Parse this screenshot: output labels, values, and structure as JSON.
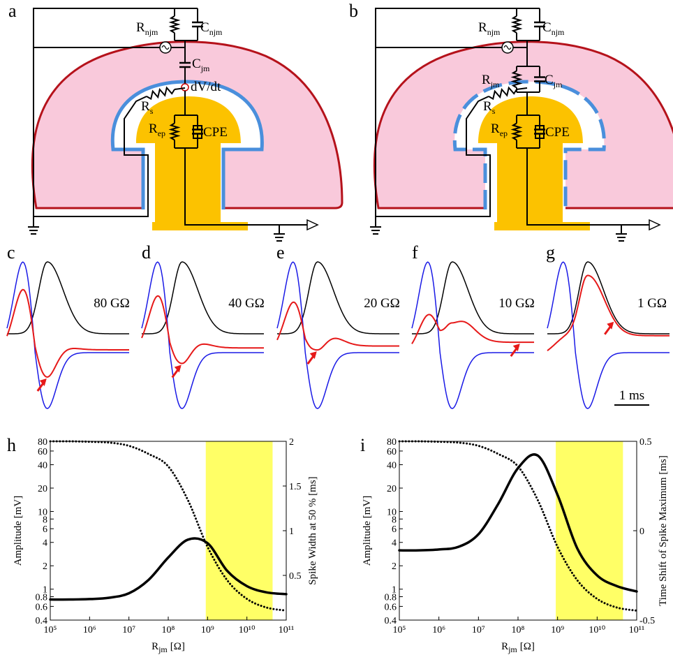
{
  "panel_labels": [
    "a",
    "b",
    "c",
    "d",
    "e",
    "f",
    "g",
    "h",
    "i"
  ],
  "circuit_a": {
    "labels": [
      {
        "main": "R",
        "sub": "njm"
      },
      {
        "main": "C",
        "sub": "njm"
      },
      {
        "main": "C",
        "sub": "jm"
      },
      {
        "main": "dV/dt"
      },
      {
        "main": "R",
        "sub": "s"
      },
      {
        "main": "R",
        "sub": "ep"
      },
      {
        "main": "CPE"
      }
    ]
  },
  "circuit_b": {
    "labels": [
      {
        "main": "R",
        "sub": "njm"
      },
      {
        "main": "C",
        "sub": "njm"
      },
      {
        "main": "R",
        "sub": "jm"
      },
      {
        "main": "C",
        "sub": "jm"
      },
      {
        "main": "R",
        "sub": "s"
      },
      {
        "main": "R",
        "sub": "ep"
      },
      {
        "main": "CPE"
      }
    ]
  },
  "spikes": {
    "resistances": [
      "80 GΩ",
      "40 GΩ",
      "20 GΩ",
      "10 GΩ",
      "1 GΩ"
    ],
    "scale_bar": "1 ms"
  },
  "chart_data": [
    {
      "type": "line",
      "xscale": "log",
      "yscale": "log",
      "xlabel": {
        "symbol": "R",
        "subscript": "jm",
        "unit": "[Ω]"
      },
      "ylabel": "Amplitude [mV]",
      "y2label": "Spike Width at 50 % [ms]",
      "x": [
        100000,
        316228,
        1000000,
        3162278,
        10000000,
        31622777,
        100000000,
        316227766,
        1000000000,
        3162277660,
        10000000000,
        31622776602,
        100000000000
      ],
      "series": [
        {
          "color": "#000000",
          "style": "dotted",
          "values": [
            80,
            80,
            79,
            77,
            70,
            55,
            38,
            14,
            3.5,
            1.3,
            0.75,
            0.58,
            0.53
          ]
        },
        {
          "color": "#000000",
          "style": "solid",
          "axis": "y2",
          "values": [
            0.23,
            0.23,
            0.235,
            0.25,
            0.3,
            0.45,
            0.7,
            0.9,
            0.86,
            0.55,
            0.38,
            0.31,
            0.29
          ]
        }
      ],
      "highlight": {
        "range": [
          900000000,
          45000000000
        ],
        "color": "#ffff66"
      },
      "xlim": [
        100000,
        100000000000
      ],
      "xticks": [
        {
          "value": 100000,
          "label": "10⁵"
        },
        {
          "value": 1000000,
          "label": "10⁶"
        },
        {
          "value": 10000000,
          "label": "10⁷"
        },
        {
          "value": 100000000,
          "label": "10⁸"
        },
        {
          "value": 1000000000,
          "label": "10⁹"
        },
        {
          "value": 10000000000,
          "label": "10¹⁰"
        },
        {
          "value": 100000000000,
          "label": "10¹¹"
        }
      ],
      "ylim": [
        0.4,
        80
      ],
      "yticks": [
        0.4,
        0.6,
        0.8,
        1,
        2,
        4,
        6,
        8,
        10,
        20,
        40,
        60,
        80
      ],
      "y2lim": [
        0,
        2
      ],
      "y2ticks": [
        0.5,
        1,
        1.5,
        2
      ]
    },
    {
      "type": "line",
      "xscale": "log",
      "yscale": "log",
      "xlabel": {
        "symbol": "R",
        "subscript": "jm",
        "unit": "[Ω]"
      },
      "ylabel": "Amplitude [mV]",
      "y2label": "Time Shift of Spike Maximum [ms]",
      "x": [
        100000,
        316228,
        1000000,
        3162278,
        10000000,
        31622777,
        100000000,
        316227766,
        1000000000,
        3162277660,
        10000000000,
        31622776602,
        100000000000
      ],
      "series": [
        {
          "color": "#000000",
          "style": "dotted",
          "values": [
            80,
            80,
            79,
            77,
            70,
            55,
            38,
            14,
            3.5,
            1.3,
            0.75,
            0.58,
            0.53
          ]
        },
        {
          "color": "#000000",
          "style": "solid",
          "axis": "y2",
          "values": [
            -0.11,
            -0.11,
            -0.105,
            -0.09,
            -0.02,
            0.15,
            0.35,
            0.42,
            0.2,
            -0.1,
            -0.25,
            -0.31,
            -0.34
          ]
        }
      ],
      "highlight": {
        "range": [
          900000000,
          45000000000
        ],
        "color": "#ffff66"
      },
      "xlim": [
        100000,
        100000000000
      ],
      "xticks": [
        {
          "value": 100000,
          "label": "10⁵"
        },
        {
          "value": 1000000,
          "label": "10⁶"
        },
        {
          "value": 10000000,
          "label": "10⁷"
        },
        {
          "value": 100000000,
          "label": "10⁸"
        },
        {
          "value": 1000000000,
          "label": "10⁹"
        },
        {
          "value": 10000000000,
          "label": "10¹⁰"
        },
        {
          "value": 100000000000,
          "label": "10¹¹"
        }
      ],
      "ylim": [
        0.4,
        80
      ],
      "yticks": [
        0.4,
        0.6,
        0.8,
        1,
        2,
        4,
        6,
        8,
        10,
        20,
        40,
        60,
        80
      ],
      "y2lim": [
        -0.5,
        0.5
      ],
      "y2ticks": [
        -0.5,
        0,
        0.5
      ]
    }
  ]
}
